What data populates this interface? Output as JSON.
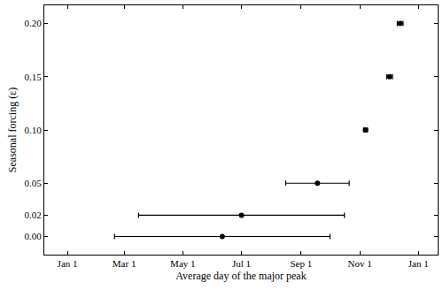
{
  "chart_data": {
    "type": "scatter",
    "x_label": "Average day of the major peak",
    "y_label": "Seasonal forcing (ε)",
    "x": [
      161,
      181,
      260,
      310,
      335,
      346
    ],
    "xerr": [
      112,
      107,
      33,
      2,
      3,
      3
    ],
    "values": [
      0.0,
      0.02,
      0.05,
      0.1,
      0.15,
      0.2
    ],
    "color": "#000000",
    "marker": "circle",
    "xlim": [
      -24,
      385
    ],
    "xticks": [
      {
        "value": 0,
        "label": "Jan 1"
      },
      {
        "value": 59,
        "label": "Mar 1"
      },
      {
        "value": 120,
        "label": "May 1"
      },
      {
        "value": 181,
        "label": "Jul 1"
      },
      {
        "value": 243,
        "label": "Sep 1"
      },
      {
        "value": 304,
        "label": "Nov 1"
      },
      {
        "value": 365,
        "label": "Jan 1"
      }
    ],
    "ylim": [
      -0.017,
      0.217
    ],
    "yticks": [
      {
        "value": 0,
        "label": "0.00"
      },
      0.02,
      0.05,
      {
        "value": 0.1,
        "label": "0.10"
      },
      0.15,
      {
        "value": 0.2,
        "label": "0.20"
      }
    ],
    "grid": false
  }
}
